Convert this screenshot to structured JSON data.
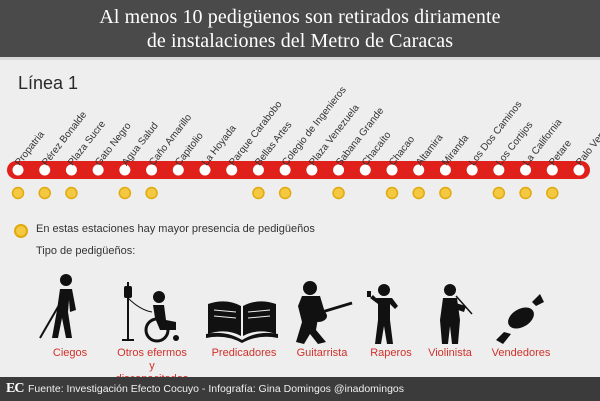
{
  "header": {
    "title_line1": "Al menos 10 pedigüenos son retirados diriamente",
    "title_line2": "de instalaciones del Metro de Caracas"
  },
  "line": {
    "label": "Línea 1",
    "color": "#e0201b",
    "stations": [
      {
        "name": "Propatria",
        "highlighted": true
      },
      {
        "name": "Pérez Bonalde",
        "highlighted": true
      },
      {
        "name": "Plaza Sucre",
        "highlighted": true
      },
      {
        "name": "Gato Negro",
        "highlighted": false
      },
      {
        "name": "Agua Salud",
        "highlighted": true
      },
      {
        "name": "Caño Amarillo",
        "highlighted": true
      },
      {
        "name": "Capitolio",
        "highlighted": false
      },
      {
        "name": "La Hoyada",
        "highlighted": false
      },
      {
        "name": "Parque Carabobo",
        "highlighted": false
      },
      {
        "name": "Bellas Artes",
        "highlighted": true
      },
      {
        "name": "Colegio de Ingenieros",
        "highlighted": true
      },
      {
        "name": "Plaza Venezuela",
        "highlighted": false
      },
      {
        "name": "Sabana Grande",
        "highlighted": true
      },
      {
        "name": "Chacaíto",
        "highlighted": false
      },
      {
        "name": "Chacao",
        "highlighted": true
      },
      {
        "name": "Altamira",
        "highlighted": true
      },
      {
        "name": "Miranda",
        "highlighted": true
      },
      {
        "name": "Los Dos Caminos",
        "highlighted": false
      },
      {
        "name": "Los Cortijos",
        "highlighted": true
      },
      {
        "name": "La California",
        "highlighted": true
      },
      {
        "name": "Petare",
        "highlighted": true
      },
      {
        "name": "Palo Verde",
        "highlighted": false
      }
    ]
  },
  "legend": {
    "text": "En estas estaciones hay mayor presencia de pedigüeños",
    "dot_color": "#f5c842"
  },
  "types": {
    "title": "Tipo de pedigüeños:",
    "items": [
      {
        "label": "Ciegos",
        "icon": "blind-person-icon"
      },
      {
        "label": "Otros efermos",
        "label2": "y discapacitados",
        "icon": "wheelchair-iv-icon"
      },
      {
        "label": "Predicadores",
        "icon": "open-book-icon"
      },
      {
        "label": "Guitarrista",
        "icon": "guitarist-icon"
      },
      {
        "label": "Raperos",
        "icon": "rapper-icon"
      },
      {
        "label": "Violinista",
        "icon": "violinist-icon"
      },
      {
        "label": "Vendedores",
        "icon": "candy-icon"
      }
    ]
  },
  "footer": {
    "logo": "EC",
    "credit": "Fuente: Investigación Efecto Cocuyo - Infografía: Gina Domingos @inadomingos"
  }
}
